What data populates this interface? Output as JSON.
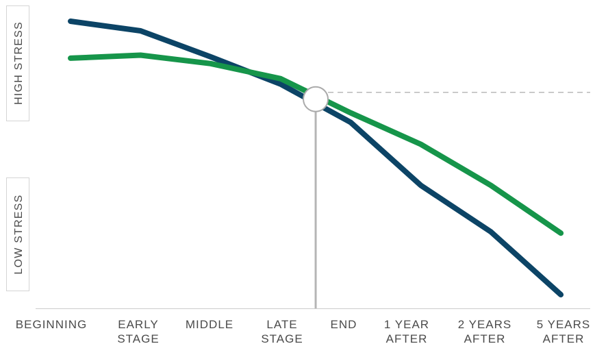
{
  "chart_data": {
    "type": "line",
    "title": "",
    "xlabel": "",
    "ylabel": "",
    "categories": [
      "BEGINNING",
      "EARLY STAGE",
      "MIDDLE",
      "LATE STAGE",
      "END",
      "1 YEAR AFTER",
      "2 YEARS AFTER",
      "5 YEARS AFTER"
    ],
    "y_bands": {
      "high": "HIGH STRESS",
      "low": "LOW STRESS"
    },
    "ylim": [
      0,
      100
    ],
    "series": [
      {
        "color": "#0c4466",
        "values": [
          100,
          96.5,
          87,
          77,
          63,
          40,
          23,
          0
        ]
      },
      {
        "color": "#16954a",
        "values": [
          86.5,
          87.6,
          84.5,
          79,
          66.5,
          55,
          40,
          22.5
        ]
      }
    ],
    "crossover": {
      "value": 71.5,
      "position": 3.5
    },
    "grid": false,
    "legend": "none"
  }
}
